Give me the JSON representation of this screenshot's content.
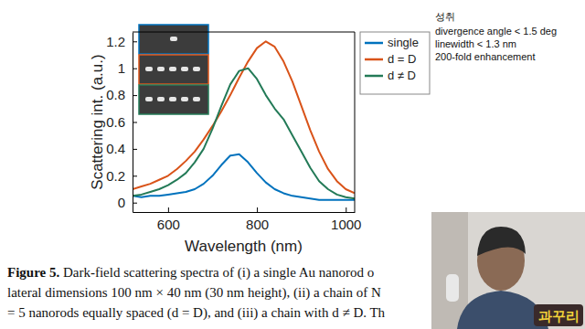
{
  "chart_data": {
    "type": "line",
    "x_label": "Wavelength (nm)",
    "y_label": "Scattering int. (a.u.)",
    "x": [
      520,
      540,
      560,
      580,
      600,
      620,
      640,
      660,
      680,
      700,
      720,
      740,
      760,
      780,
      800,
      820,
      840,
      860,
      880,
      900,
      920,
      940,
      960,
      980,
      1000,
      1020
    ],
    "series": [
      {
        "name": "single",
        "color": "#0072bd",
        "values": [
          0.05,
          0.04,
          0.05,
          0.05,
          0.06,
          0.07,
          0.08,
          0.1,
          0.14,
          0.2,
          0.28,
          0.35,
          0.36,
          0.3,
          0.22,
          0.15,
          0.1,
          0.07,
          0.05,
          0.04,
          0.03,
          0.02,
          0.02,
          0.02,
          0.02,
          0.02
        ]
      },
      {
        "name": "d = D",
        "color": "#d95319",
        "values": [
          0.1,
          0.12,
          0.14,
          0.17,
          0.2,
          0.25,
          0.31,
          0.38,
          0.47,
          0.57,
          0.68,
          0.8,
          0.93,
          1.05,
          1.15,
          1.2,
          1.16,
          1.05,
          0.9,
          0.72,
          0.54,
          0.38,
          0.25,
          0.16,
          0.1,
          0.07
        ]
      },
      {
        "name": "d ≠ D",
        "color": "#237a57",
        "values": [
          0.05,
          0.06,
          0.08,
          0.1,
          0.13,
          0.17,
          0.22,
          0.3,
          0.4,
          0.55,
          0.72,
          0.88,
          0.98,
          1.0,
          0.92,
          0.8,
          0.7,
          0.62,
          0.5,
          0.38,
          0.26,
          0.16,
          0.1,
          0.06,
          0.04,
          0.03
        ]
      }
    ],
    "xlim": [
      520,
      1020
    ],
    "xticks": [
      600,
      800,
      1000
    ],
    "ylim": [
      -0.07,
      1.27
    ],
    "yticks": [
      0,
      0.2,
      0.4,
      0.6,
      0.8,
      1,
      1.2
    ],
    "legend": "right"
  },
  "caption": {
    "label": "Figure 5.",
    "lines": [
      " Dark-field scattering spectra of (i) a single Au nanorod o",
      "lateral dimensions 100 nm × 40 nm (30 nm height), (ii) a chain of N",
      "= 5 nanorods equally spaced (d = D), and (iii) a chain with d ≠ D. Th"
    ]
  },
  "notes": {
    "title": "성취",
    "items": [
      "divergence angle < 1.5 deg",
      "linewidth < 1.3 nm",
      "200-fold enhancement"
    ]
  },
  "logo": "과꾸리"
}
